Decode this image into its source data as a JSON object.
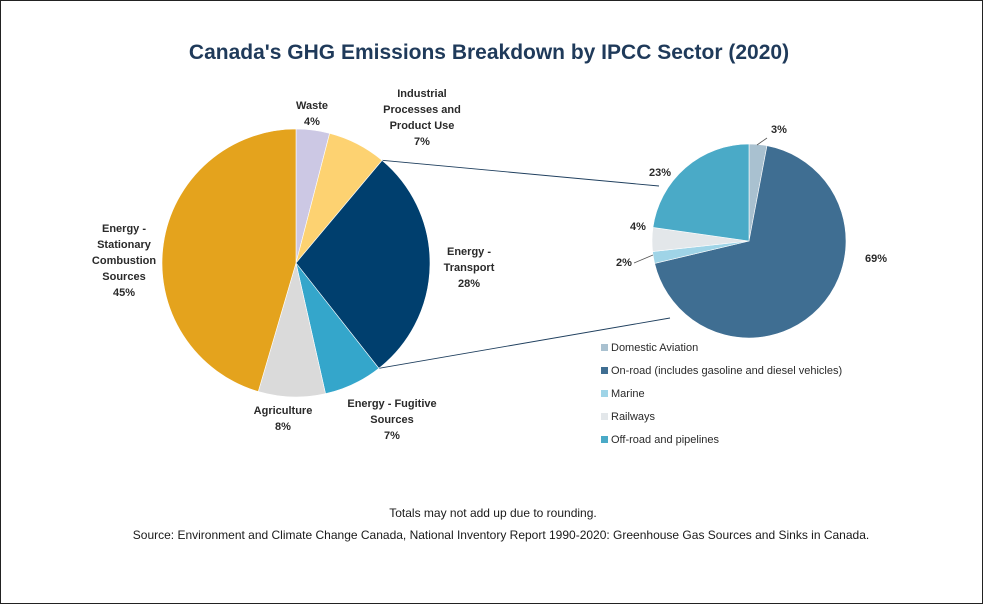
{
  "chart_data": [
    {
      "type": "pie",
      "title": "Canada's GHG Emissions Breakdown by IPCC Sector (2020)",
      "slices": [
        {
          "key": "waste",
          "name": "Waste",
          "value": 4,
          "label": "4%",
          "color": "#ccc8e4"
        },
        {
          "key": "ippu",
          "name": "Industrial Processes and Product Use",
          "value": 7,
          "label": "7%",
          "color": "#fdd271"
        },
        {
          "key": "transport",
          "name": "Energy - Transport",
          "value": 28,
          "label": "28%",
          "color": "#003f6e"
        },
        {
          "key": "fugitive",
          "name": "Energy - Fugitive Sources",
          "value": 7,
          "label": "7%",
          "color": "#34a6cb"
        },
        {
          "key": "agriculture",
          "name": "Agriculture",
          "value": 8,
          "label": "8%",
          "color": "#dadada"
        },
        {
          "key": "stationary",
          "name": "Energy - Stationary Combustion Sources",
          "value": 45,
          "label": "45%",
          "color": "#e4a31d"
        }
      ]
    },
    {
      "type": "pie",
      "breakdown_of": "Energy - Transport",
      "legend_position": "bottom",
      "slices": [
        {
          "key": "aviation",
          "name": "Domestic Aviation",
          "value": 3,
          "label": "3%",
          "color": "#a9c1d0"
        },
        {
          "key": "onroad",
          "name": "On-road (includes gasoline and diesel vehicles)",
          "value": 69,
          "label": "69%",
          "color": "#3f6e92"
        },
        {
          "key": "marine",
          "name": "Marine",
          "value": 2,
          "label": "2%",
          "color": "#9fd4e7"
        },
        {
          "key": "railways",
          "name": "Railways",
          "value": 4,
          "label": "4%",
          "color": "#e3e7ea"
        },
        {
          "key": "offroad",
          "name": "Off-road and pipelines",
          "value": 23,
          "label": "23%",
          "color": "#4aaac7"
        }
      ]
    }
  ],
  "notes": {
    "rounding": "Totals may not add up due to rounding.",
    "source": "Source: Environment and Climate Change Canada, National Inventory Report 1990-2020:  Greenhouse Gas Sources and Sinks in Canada."
  }
}
